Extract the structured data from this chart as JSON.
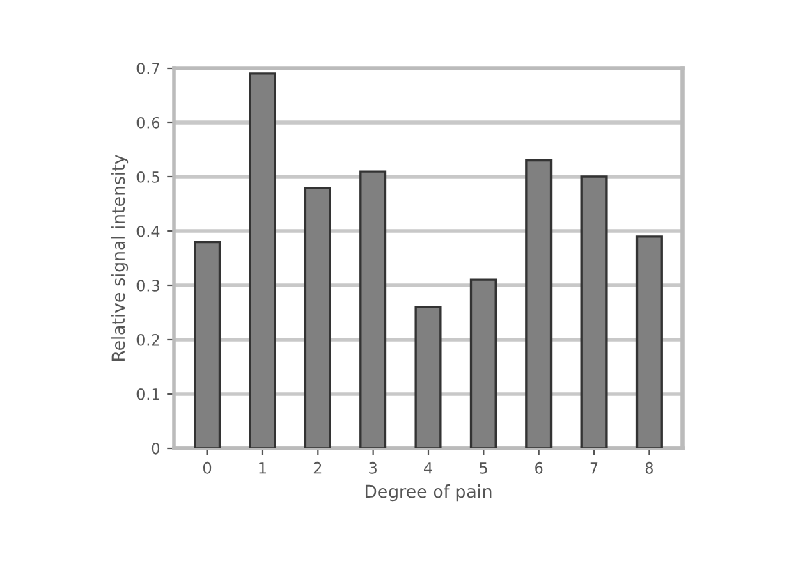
{
  "chart_data": {
    "type": "bar",
    "xlabel": "Degree of pain",
    "ylabel": "Relative signal intensity",
    "categories": [
      "0",
      "1",
      "2",
      "3",
      "4",
      "5",
      "6",
      "7",
      "8"
    ],
    "values": [
      0.38,
      0.69,
      0.48,
      0.51,
      0.26,
      0.31,
      0.53,
      0.5,
      0.39
    ],
    "color": "#808080",
    "ylim": [
      0,
      0.7
    ],
    "yticks": [
      {
        "value": 0,
        "label": "0"
      },
      0.1,
      0.2,
      0.3,
      0.4,
      0.5,
      0.6,
      0.7
    ],
    "grid": "y"
  }
}
